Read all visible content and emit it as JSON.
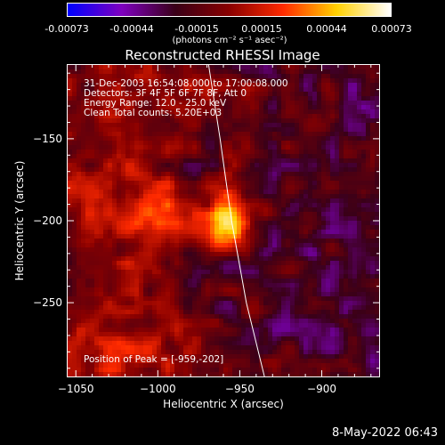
{
  "colorbar": {
    "tick_labels": [
      "-0.00073",
      "-0.00044",
      "-0.00015",
      "0.00015",
      "0.00044",
      "0.00073"
    ],
    "units_label": "(photons cm⁻² s⁻¹ asec⁻²)",
    "range": [
      -0.00073,
      0.00073
    ],
    "colormap": [
      "#0000ff",
      "#7f00bf",
      "#3a0018",
      "#8a0000",
      "#ff2a00",
      "#ffd100",
      "#ffffff"
    ]
  },
  "info_lines": [
    "31-Dec-2003 16:54:08.000 to 17:00:08.000",
    "Detectors: 3F 4F 5F 6F 7F 8F, Att 0",
    "Energy Range: 12.0 - 25.0 keV",
    "Clean     Total counts: 5.20E+03"
  ],
  "peak_label": "Position of Peak = [-959,-202]",
  "datestamp": "8-May-2022 06:43",
  "chart_data": {
    "type": "heatmap",
    "title": "Reconstructed RHESSI Image",
    "xlabel": "Heliocentric X (arcsec)",
    "ylabel": "Heliocentric Y (arcsec)",
    "xlim": [
      -1055,
      -865
    ],
    "ylim": [
      -295,
      -105
    ],
    "xticks": [
      -1050,
      -1000,
      -950,
      -900
    ],
    "yticks": [
      -150,
      -200,
      -250
    ],
    "xtick_labels": [
      "−1050",
      "−1000",
      "−950",
      "−900"
    ],
    "ytick_labels": [
      "−150",
      "−200",
      "−250"
    ],
    "peak": [
      -959,
      -202
    ],
    "peak_value": 0.00073,
    "limb_curve": [
      [
        -969,
        -105
      ],
      [
        -962,
        -150
      ],
      [
        -955,
        -200
      ],
      [
        -946,
        -250
      ],
      [
        -935,
        -295
      ]
    ],
    "sources": [
      {
        "x": -959,
        "y": -202,
        "value": 0.00073
      },
      {
        "x": -1000,
        "y": -200,
        "value": 0.00024
      },
      {
        "x": -1010,
        "y": -165,
        "value": 0.00018
      },
      {
        "x": -1030,
        "y": -270,
        "value": 0.00016
      },
      {
        "x": -1005,
        "y": -285,
        "value": 0.00015
      },
      {
        "x": -1045,
        "y": -195,
        "value": 0.00012
      }
    ]
  }
}
